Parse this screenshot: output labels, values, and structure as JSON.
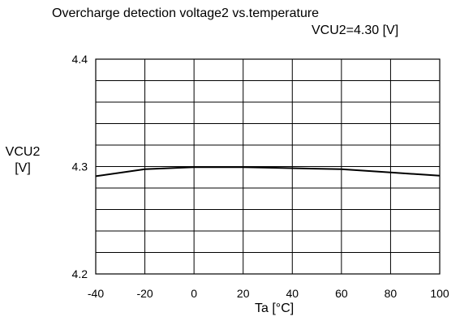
{
  "chart_data": {
    "type": "line",
    "title": "Overcharge detection voltage2 vs.temperature",
    "subtitle": "VCU2=4.30 [V]",
    "xlabel": "Ta [°C]",
    "ylabel_line1": "VCU2",
    "ylabel_line2": "[V]",
    "xlim": [
      -40,
      100
    ],
    "ylim": [
      4.2,
      4.4
    ],
    "x_ticks": [
      -40,
      -20,
      0,
      20,
      40,
      60,
      80,
      100
    ],
    "y_ticks": [
      4.2,
      4.3,
      4.4
    ],
    "y_gridlines": [
      4.2,
      4.22,
      4.24,
      4.26,
      4.28,
      4.3,
      4.32,
      4.34,
      4.36,
      4.38,
      4.4
    ],
    "grid": true,
    "series": [
      {
        "x": [
          -40,
          -20,
          0,
          20,
          40,
          60,
          80,
          100
        ],
        "y": [
          4.291,
          4.2975,
          4.2995,
          4.2995,
          4.2985,
          4.2975,
          4.2945,
          4.2915
        ]
      }
    ]
  }
}
